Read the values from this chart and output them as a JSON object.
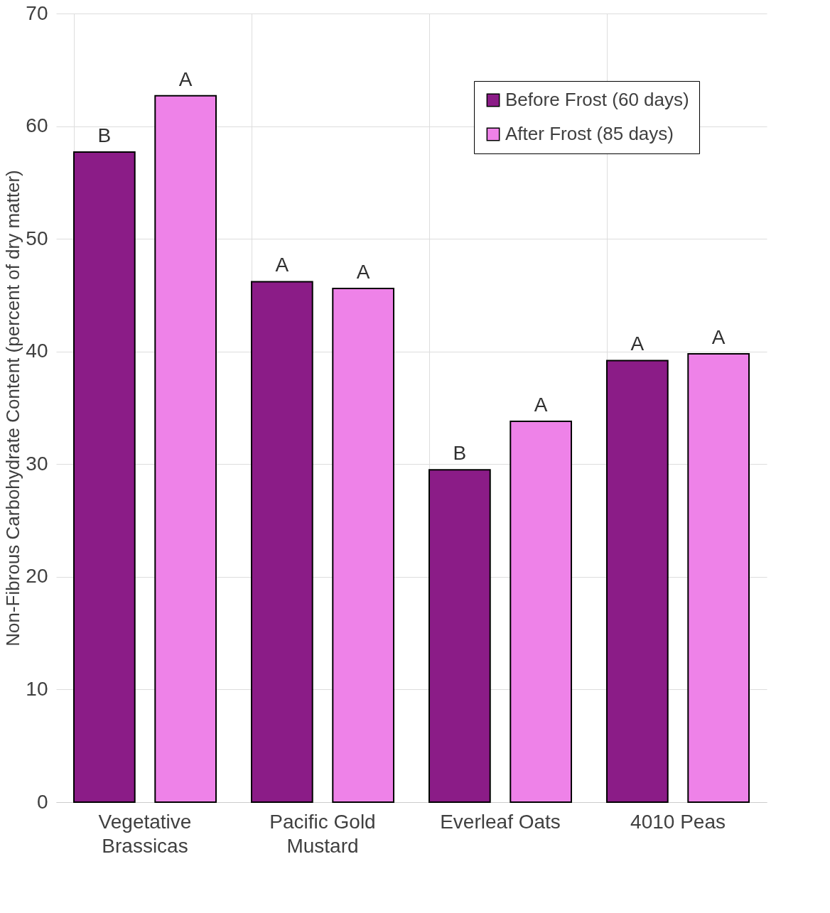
{
  "chart_data": {
    "type": "bar",
    "ylabel": "Non-Fibrous Carbohydrate  Content (percent of dry matter)",
    "categories": [
      "Vegetative Brassicas",
      "Pacific Gold Mustard",
      "Everleaf Oats",
      "4010 Peas"
    ],
    "series": [
      {
        "name": "Before Frost (60 days)",
        "color": "#8b1c87",
        "values": [
          57.7,
          46.2,
          29.5,
          39.2
        ],
        "value_labels": [
          "B",
          "A",
          "B",
          "A"
        ]
      },
      {
        "name": "After Frost (85 days)",
        "color": "#ee82e8",
        "values": [
          62.7,
          45.6,
          33.8,
          39.8
        ],
        "value_labels": [
          "A",
          "A",
          "A",
          "A"
        ]
      }
    ],
    "ylim": [
      0,
      70
    ],
    "yticks": [
      0,
      10,
      20,
      30,
      40,
      50,
      60,
      70
    ],
    "grid": true,
    "legend": "top right"
  }
}
